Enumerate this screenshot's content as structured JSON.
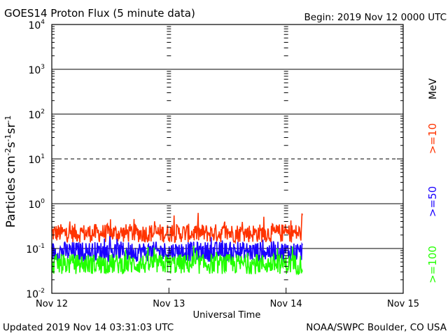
{
  "header": {
    "title": "GOES14 Proton Flux (5 minute data)",
    "begin": "Begin: 2019 Nov 12 0000 UTC"
  },
  "footer": {
    "updated": "Updated 2019 Nov 14 03:31:03 UTC",
    "source": "NOAA/SWPC Boulder, CO USA"
  },
  "chart_data": {
    "type": "line",
    "title": "GOES14 Proton Flux (5 minute data)",
    "xlabel": "Universal Time",
    "ylabel": "Particles cm-2s-1sr-1",
    "yscale": "log",
    "ylim": [
      0.01,
      10000
    ],
    "xlim": [
      0,
      3
    ],
    "x_unit": "days since 2019 Nov 12 0000 UTC",
    "x_ticks": [
      {
        "value": 0,
        "label": "Nov 12"
      },
      {
        "value": 1,
        "label": "Nov 13"
      },
      {
        "value": 2,
        "label": "Nov 14"
      },
      {
        "value": 3,
        "label": "Nov 15"
      }
    ],
    "y_ticks": [
      {
        "value": 0.01,
        "base": "10",
        "exp": "-2"
      },
      {
        "value": 0.1,
        "base": "10",
        "exp": "-1"
      },
      {
        "value": 1,
        "base": "10",
        "exp": "0"
      },
      {
        "value": 10,
        "base": "10",
        "exp": "1"
      },
      {
        "value": 100,
        "base": "10",
        "exp": "2"
      },
      {
        "value": 1000,
        "base": "10",
        "exp": "3"
      },
      {
        "value": 10000,
        "base": "10",
        "exp": "4"
      }
    ],
    "threshold_line": 10,
    "units_label": "MeV",
    "series": [
      {
        "name": ">=10",
        "color": "#ff3300",
        "mean": 0.22,
        "spread": 0.42,
        "spike_max": 0.65,
        "x_end": 2.14
      },
      {
        "name": ">=50",
        "color": "#1a00ff",
        "mean": 0.085,
        "spread": 0.45,
        "spike_max": 0.2,
        "x_end": 2.14
      },
      {
        "name": ">=100",
        "color": "#22ff00",
        "mean": 0.045,
        "spread": 0.45,
        "spike_max": 0.12,
        "x_end": 2.14
      }
    ],
    "legend_placement": "right"
  }
}
